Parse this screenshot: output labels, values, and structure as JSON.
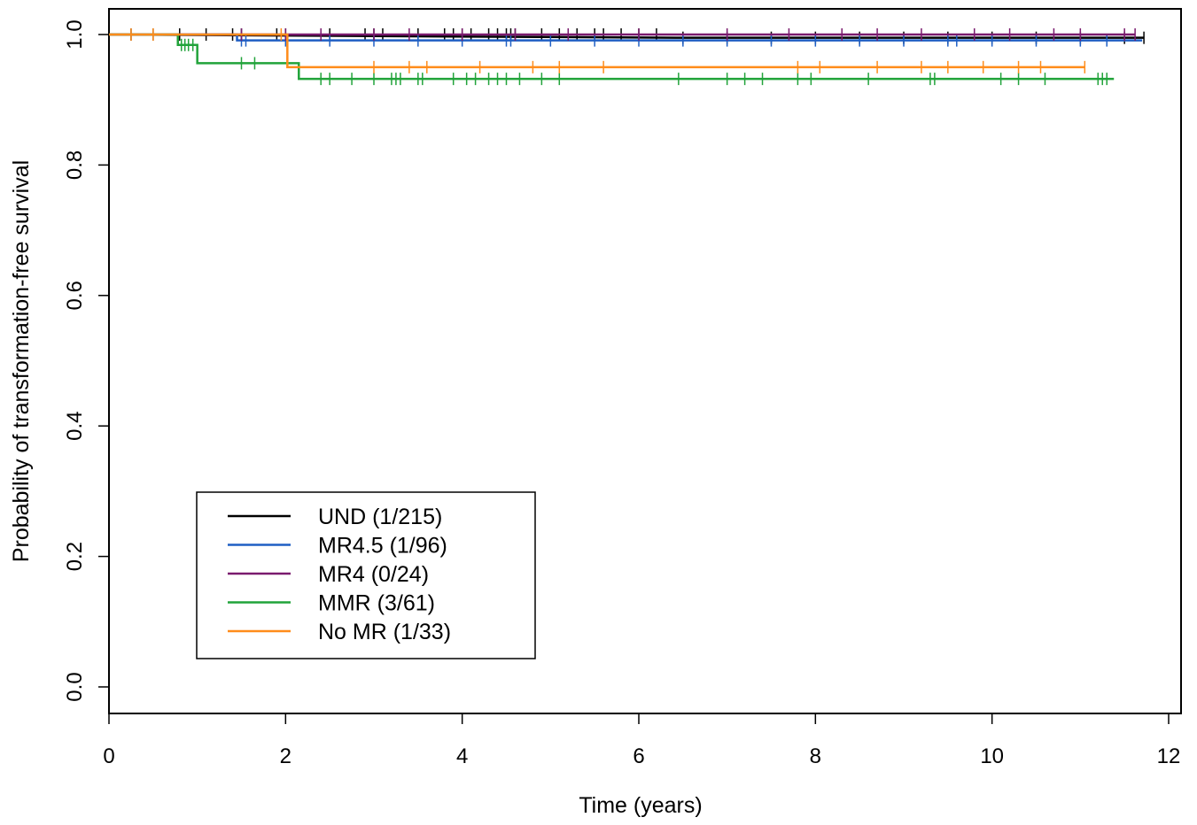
{
  "chart_data": {
    "type": "line",
    "subtype": "kaplan-meier-step",
    "xlabel": "Time (years)",
    "ylabel": "Probability of transformation-free survival",
    "xlim": [
      0,
      12
    ],
    "ylim": [
      0,
      1
    ],
    "x_ticks": [
      0,
      2,
      4,
      6,
      8,
      10,
      12
    ],
    "x_tick_labels": [
      "0",
      "2",
      "4",
      "6",
      "8",
      "10",
      "12"
    ],
    "y_ticks": [
      0,
      0.2,
      0.4,
      0.6,
      0.8,
      1.0
    ],
    "y_tick_labels": [
      "0.0",
      "0.2",
      "0.4",
      "0.6",
      "0.8",
      "1.0"
    ],
    "grid": false,
    "legend_position": "bottom-left",
    "series": [
      {
        "name": "UND (1/215)",
        "color": "#000000",
        "steps": [
          [
            0,
            1.0
          ],
          [
            0.05,
            1.0
          ],
          [
            6.45,
            0.995
          ],
          [
            11.72,
            0.995
          ]
        ],
        "censor_times": [
          0.25,
          0.5,
          0.8,
          1.1,
          1.4,
          1.5,
          1.9,
          2.0,
          2.5,
          2.9,
          3.0,
          3.1,
          3.5,
          3.8,
          3.9,
          4.0,
          4.1,
          4.3,
          4.4,
          4.5,
          4.55,
          4.6,
          4.9,
          5.1,
          5.3,
          5.5,
          5.6,
          5.8,
          6.0,
          6.2,
          6.5,
          7.0,
          7.5,
          8.0,
          8.5,
          9.0,
          9.5,
          10.0,
          10.5,
          11.0,
          11.5,
          11.72
        ]
      },
      {
        "name": "MR4.5 (1/96)",
        "color": "#1f5fc4",
        "steps": [
          [
            0,
            1.0
          ],
          [
            1.45,
            1.0
          ],
          [
            1.45,
            0.991
          ],
          [
            11.7,
            0.991
          ]
        ],
        "censor_times": [
          1.5,
          1.55,
          2.0,
          2.5,
          3.0,
          3.5,
          4.0,
          4.5,
          4.55,
          5.0,
          5.5,
          6.0,
          6.5,
          7.0,
          7.5,
          8.0,
          8.5,
          9.0,
          9.5,
          9.6,
          10.0,
          10.5,
          11.0,
          11.3
        ]
      },
      {
        "name": "MR4 (0/24)",
        "color": "#7a1a6e",
        "steps": [
          [
            0,
            1.0
          ],
          [
            11.62,
            1.0
          ]
        ],
        "censor_times": [
          1.5,
          2.0,
          2.4,
          3.0,
          3.4,
          4.0,
          4.6,
          5.2,
          6.0,
          7.0,
          7.7,
          8.3,
          8.7,
          9.2,
          9.8,
          10.2,
          10.7,
          11.0,
          11.5,
          11.62
        ]
      },
      {
        "name": "MMR (3/61)",
        "color": "#21a33a",
        "steps": [
          [
            0,
            1.0
          ],
          [
            0.78,
            1.0
          ],
          [
            0.78,
            0.984
          ],
          [
            1.0,
            0.984
          ],
          [
            1.0,
            0.956
          ],
          [
            2.15,
            0.956
          ],
          [
            2.15,
            0.932
          ],
          [
            11.38,
            0.932
          ]
        ],
        "censor_times": [
          0.82,
          0.86,
          0.9,
          0.95,
          1.5,
          1.65,
          2.4,
          2.5,
          2.75,
          3.0,
          3.2,
          3.25,
          3.3,
          3.5,
          3.55,
          3.9,
          4.05,
          4.15,
          4.3,
          4.4,
          4.5,
          4.65,
          4.9,
          5.1,
          6.45,
          7.0,
          7.2,
          7.4,
          7.8,
          7.95,
          8.6,
          9.3,
          9.35,
          10.1,
          10.3,
          10.6,
          11.2,
          11.25,
          11.3
        ]
      },
      {
        "name": "No MR (1/33)",
        "color": "#ff8c1a",
        "steps": [
          [
            0,
            1.0
          ],
          [
            2.02,
            1.0
          ],
          [
            2.02,
            0.95
          ],
          [
            11.05,
            0.95
          ]
        ],
        "censor_times": [
          0.25,
          0.5,
          1.95,
          3.0,
          3.4,
          3.6,
          4.2,
          4.8,
          5.1,
          5.6,
          7.8,
          8.05,
          8.7,
          9.2,
          9.5,
          9.9,
          10.3,
          10.55,
          11.05
        ]
      }
    ]
  }
}
